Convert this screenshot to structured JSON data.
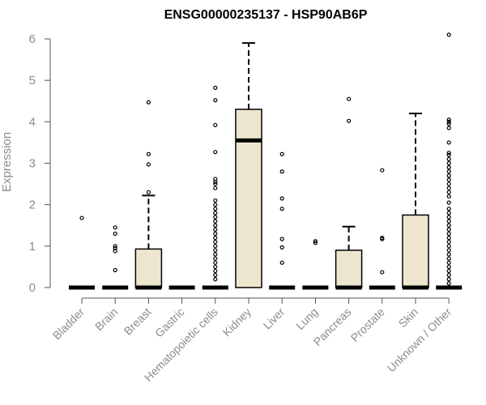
{
  "chart_data": {
    "type": "boxplot",
    "title": "ENSG00000235137 - HSP90AB6P",
    "xlabel": "",
    "ylabel": "Expression",
    "ylim": [
      0,
      6
    ],
    "yticks": [
      0,
      1,
      2,
      3,
      4,
      5,
      6
    ],
    "box_fill": "#ede6cf",
    "categories": [
      "Bladder",
      "Brain",
      "Breast",
      "Gastric",
      "Hematopoietic cells",
      "Kidney",
      "Liver",
      "Lung",
      "Pancreas",
      "Prostate",
      "Skin",
      "Unknown / Other"
    ],
    "series": [
      {
        "name": "Bladder",
        "q1": 0,
        "median": 0,
        "q3": 0,
        "whisker_low": 0,
        "whisker_high": 0,
        "outliers": [
          1.68
        ]
      },
      {
        "name": "Brain",
        "q1": 0,
        "median": 0,
        "q3": 0,
        "whisker_low": 0,
        "whisker_high": 0,
        "outliers": [
          1.45,
          1.3,
          1.0,
          0.95,
          0.88,
          0.42
        ]
      },
      {
        "name": "Breast",
        "q1": 0,
        "median": 0,
        "q3": 0.93,
        "whisker_low": 0,
        "whisker_high": 2.22,
        "outliers": [
          4.47,
          3.22,
          2.97,
          2.3
        ]
      },
      {
        "name": "Gastric",
        "q1": 0,
        "median": 0,
        "q3": 0,
        "whisker_low": 0,
        "whisker_high": 0,
        "outliers": []
      },
      {
        "name": "Hematopoietic cells",
        "q1": 0,
        "median": 0,
        "q3": 0,
        "whisker_low": 0,
        "whisker_high": 0,
        "outliers": [
          4.82,
          4.52,
          3.92,
          3.27,
          2.62,
          2.55,
          2.5,
          2.4,
          2.1,
          2.0,
          1.9,
          1.8,
          1.7,
          1.6,
          1.5,
          1.4,
          1.3,
          1.2,
          1.1,
          1.0,
          0.9,
          0.8,
          0.7,
          0.6,
          0.5,
          0.4,
          0.3,
          0.2
        ]
      },
      {
        "name": "Kidney",
        "q1": 0,
        "median": 3.55,
        "q3": 4.3,
        "whisker_low": 0,
        "whisker_high": 5.9,
        "outliers": []
      },
      {
        "name": "Liver",
        "q1": 0,
        "median": 0,
        "q3": 0,
        "whisker_low": 0,
        "whisker_high": 0,
        "outliers": [
          3.22,
          2.8,
          2.15,
          1.9,
          1.17,
          0.97,
          0.6
        ]
      },
      {
        "name": "Lung",
        "q1": 0,
        "median": 0,
        "q3": 0,
        "whisker_low": 0,
        "whisker_high": 0,
        "outliers": [
          1.12,
          1.08
        ]
      },
      {
        "name": "Pancreas",
        "q1": 0,
        "median": 0,
        "q3": 0.9,
        "whisker_low": 0,
        "whisker_high": 1.47,
        "outliers": [
          4.55,
          4.02
        ]
      },
      {
        "name": "Prostate",
        "q1": 0,
        "median": 0,
        "q3": 0,
        "whisker_low": 0,
        "whisker_high": 0,
        "outliers": [
          2.83,
          1.2,
          1.17,
          0.37
        ]
      },
      {
        "name": "Skin",
        "q1": 0,
        "median": 0,
        "q3": 1.75,
        "whisker_low": 0,
        "whisker_high": 4.2,
        "outliers": []
      },
      {
        "name": "Unknown / Other",
        "q1": 0,
        "median": 0,
        "q3": 0,
        "whisker_low": 0,
        "whisker_high": 0,
        "outliers": [
          6.1,
          4.05,
          4.0,
          3.95,
          3.85,
          3.5,
          3.25,
          3.2,
          3.1,
          3.0,
          2.9,
          2.8,
          2.7,
          2.6,
          2.5,
          2.4,
          2.3,
          2.2,
          2.05,
          1.9,
          1.8,
          1.7,
          1.6,
          1.5,
          1.4,
          1.3,
          1.2,
          1.1,
          1.0,
          0.9,
          0.8,
          0.7,
          0.6,
          0.5,
          0.4,
          0.3,
          0.2,
          0.1
        ]
      }
    ]
  }
}
